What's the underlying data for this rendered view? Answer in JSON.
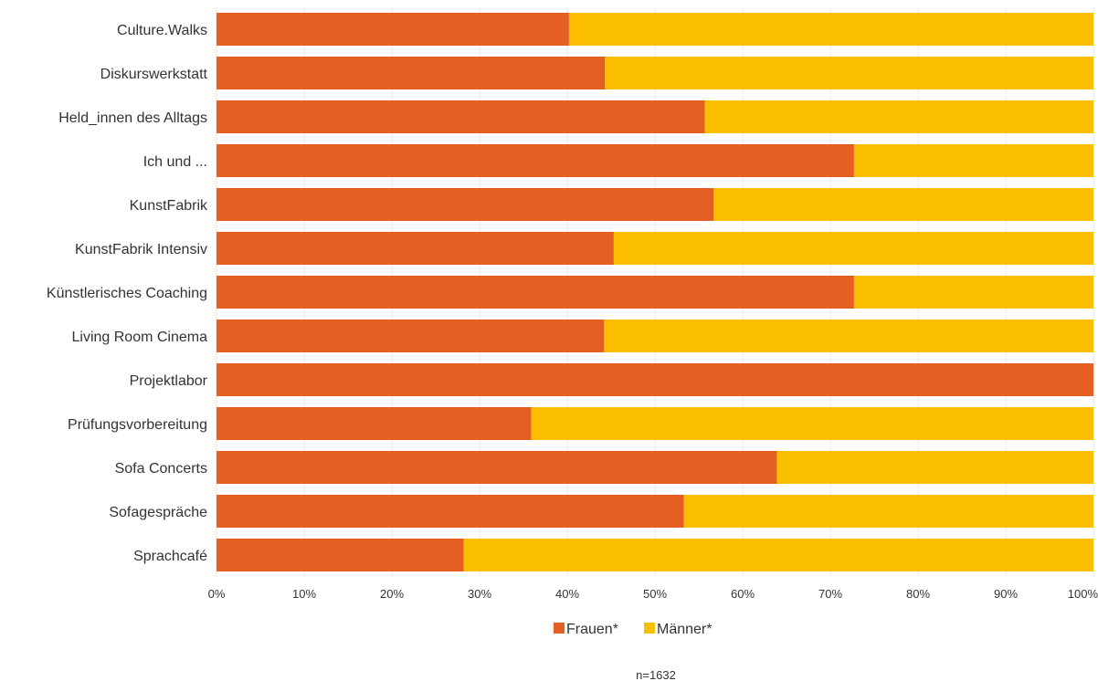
{
  "chart_data": {
    "type": "bar",
    "orientation": "horizontal",
    "stacked": true,
    "percent_stacked": true,
    "categories": [
      "Culture.Walks",
      "Diskurswerkstatt",
      "Held_innen des Alltags",
      "Ich und ...",
      "KunstFabrik",
      "KunstFabrik Intensiv",
      "Künstlerisches Coaching",
      "Living Room Cinema",
      "Projektlabor",
      "Prüfungsvorbereitung",
      "Sofa Concerts",
      "Sofagespräche",
      "Sprachcafé"
    ],
    "series": [
      {
        "name": "Frauen*",
        "color": "#e55f22",
        "values": [
          40.2,
          44.3,
          55.7,
          72.7,
          56.7,
          45.3,
          72.7,
          44.2,
          100,
          35.9,
          63.9,
          53.3,
          28.2
        ]
      },
      {
        "name": "Männer*",
        "color": "#fbbf00",
        "values": [
          59.8,
          55.7,
          44.3,
          27.3,
          43.3,
          54.7,
          27.3,
          55.8,
          0,
          64.1,
          36.1,
          46.7,
          71.8
        ]
      }
    ],
    "x_ticks": [
      "0%",
      "10%",
      "20%",
      "30%",
      "40%",
      "50%",
      "60%",
      "70%",
      "80%",
      "90%",
      "100%"
    ],
    "xlim": [
      0,
      100
    ],
    "grid": true,
    "legend_position": "bottom-center",
    "note": "n=1632"
  }
}
